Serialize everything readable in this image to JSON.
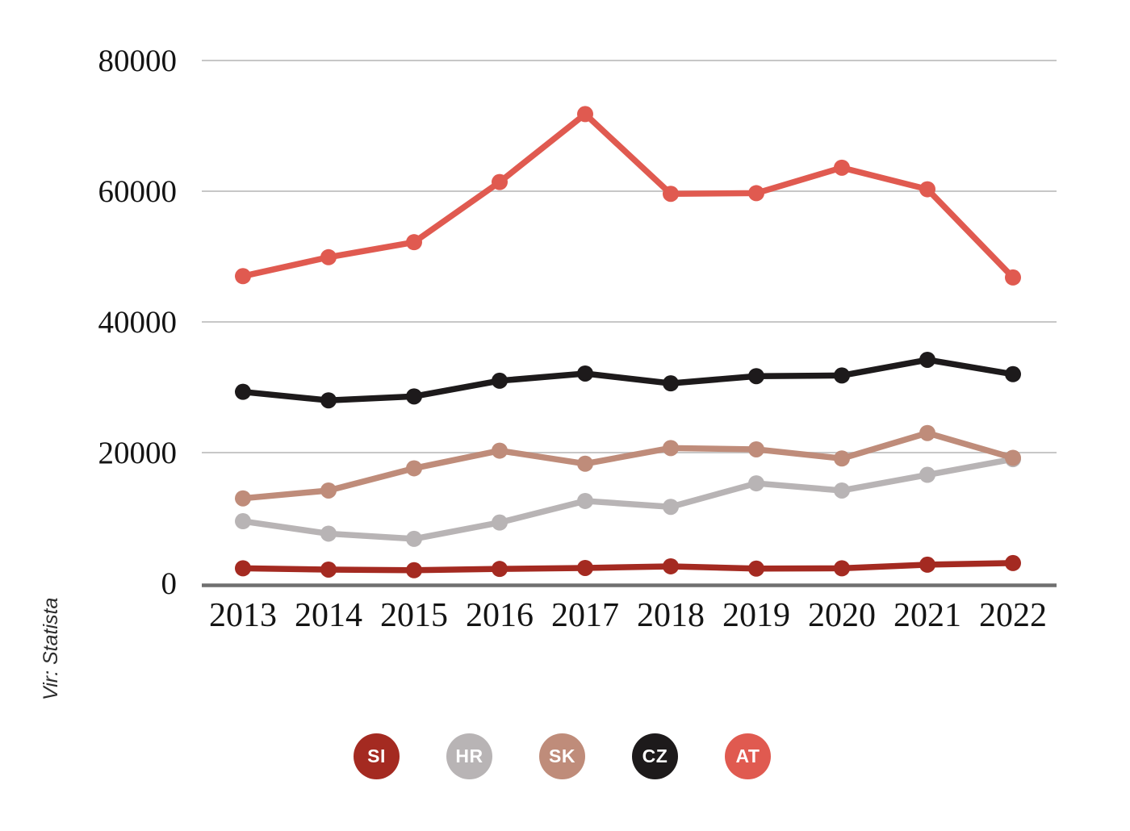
{
  "source_label": "Vir: Statista",
  "colors": {
    "si": "#a42a21",
    "hr": "#b8b4b5",
    "sk": "#bf8c7a",
    "cz": "#1d1a1b",
    "at": "#e05a50",
    "gridline": "#c7c7c7",
    "axis": "#6f6f6f",
    "tick_text": "#141414"
  },
  "chart_data": {
    "type": "line",
    "x": [
      2013,
      2014,
      2015,
      2016,
      2017,
      2018,
      2019,
      2020,
      2021,
      2022
    ],
    "series": [
      {
        "name": "SI",
        "color": "#a42a21",
        "values": [
          2300,
          2100,
          2000,
          2200,
          2350,
          2600,
          2250,
          2300,
          2850,
          3100
        ]
      },
      {
        "name": "HR",
        "color": "#b8b4b5",
        "values": [
          9500,
          7600,
          6800,
          9300,
          12600,
          11700,
          15300,
          14200,
          16600,
          19000
        ]
      },
      {
        "name": "SK",
        "color": "#bf8c7a",
        "values": [
          13000,
          14200,
          17600,
          20300,
          18300,
          20700,
          20500,
          19100,
          23000,
          19200
        ]
      },
      {
        "name": "CZ",
        "color": "#1d1a1b",
        "values": [
          29300,
          28000,
          28600,
          31000,
          32100,
          30600,
          31700,
          31800,
          34200,
          32000
        ]
      },
      {
        "name": "AT",
        "color": "#e05a50",
        "values": [
          47000,
          49900,
          52200,
          61400,
          71800,
          59600,
          59700,
          63600,
          60300,
          46800
        ]
      }
    ],
    "title": "",
    "xlabel": "",
    "ylabel": "",
    "ylim": [
      0,
      80000
    ],
    "yticks": [
      0,
      20000,
      40000,
      60000,
      80000
    ],
    "grid": "horizontal",
    "legend_position": "bottom",
    "marker": "circle"
  }
}
